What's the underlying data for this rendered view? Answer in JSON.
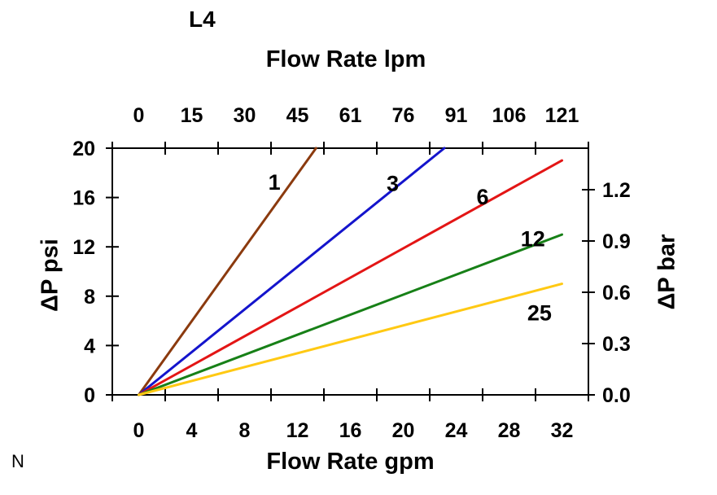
{
  "page": {
    "background": "#ffffff",
    "corner_mark": "N"
  },
  "chart_data": {
    "type": "line",
    "title": "L4",
    "axis_color": "#000000",
    "line_width": 3,
    "grid": false,
    "legend": "inline labels on lines",
    "axes": {
      "top": {
        "label": "Flow Rate lpm",
        "ticks": [
          "0",
          "15",
          "30",
          "45",
          "61",
          "76",
          "91",
          "106",
          "121"
        ]
      },
      "bottom": {
        "label": "Flow Rate gpm",
        "ticks": [
          "0",
          "4",
          "8",
          "12",
          "16",
          "20",
          "24",
          "28",
          "32"
        ],
        "range_gpm": [
          0,
          32
        ]
      },
      "left": {
        "label": "ΔP psi",
        "ticks": [
          "0",
          "4",
          "8",
          "12",
          "16",
          "20"
        ],
        "range_psi": [
          0,
          20
        ]
      },
      "right": {
        "label": "ΔP bar",
        "ticks": [
          "0.0",
          "0.3",
          "0.6",
          "0.9",
          "1.2"
        ]
      }
    },
    "series": [
      {
        "label": "1",
        "color": "#8B3A0E",
        "points_gpm_psi": [
          [
            0,
            0
          ],
          [
            13.4,
            20
          ]
        ],
        "label_anchor_gpm_psi": [
          10.25,
          17.3
        ]
      },
      {
        "label": "3",
        "color": "#1414CC",
        "points_gpm_psi": [
          [
            0,
            0
          ],
          [
            23.1,
            20
          ]
        ],
        "label_anchor_gpm_psi": [
          19.2,
          17.2
        ]
      },
      {
        "label": "6",
        "color": "#E31515",
        "points_gpm_psi": [
          [
            0,
            0
          ],
          [
            32,
            19
          ]
        ],
        "label_anchor_gpm_psi": [
          26.0,
          16.1
        ]
      },
      {
        "label": "12",
        "color": "#178017",
        "points_gpm_psi": [
          [
            0,
            0
          ],
          [
            32,
            13
          ]
        ],
        "label_anchor_gpm_psi": [
          29.8,
          12.7
        ]
      },
      {
        "label": "25",
        "color": "#FFC913",
        "points_gpm_psi": [
          [
            0,
            0
          ],
          [
            32,
            9
          ]
        ],
        "label_anchor_gpm_psi": [
          30.3,
          6.7
        ]
      }
    ]
  }
}
